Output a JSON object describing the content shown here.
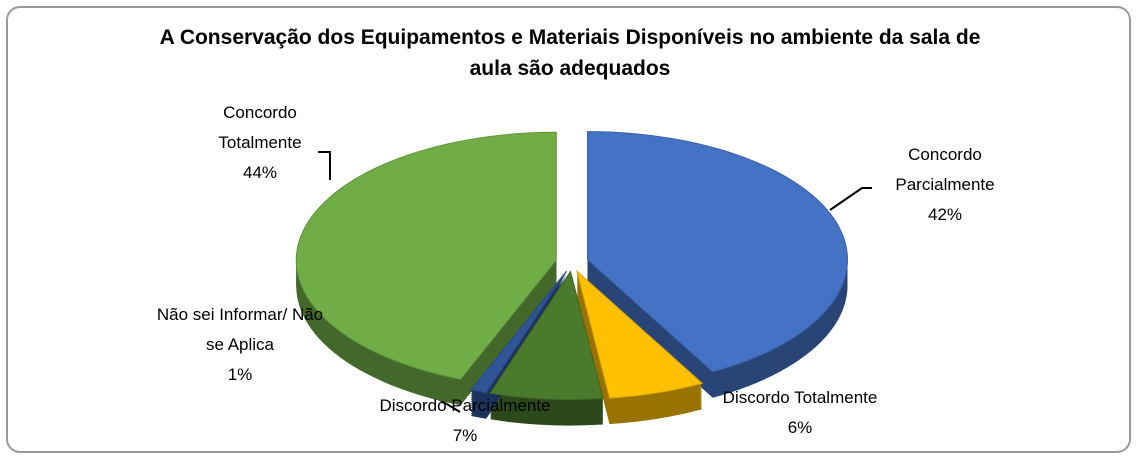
{
  "chart_data": {
    "type": "pie",
    "title": "A Conservação dos Equipamentos e Materiais Disponíveis no ambiente da sala de aula são adequados",
    "categories": [
      "Concordo Parcialmente",
      "Discordo Totalmente",
      "Discordo Parcialmente",
      "Não sei Informar/ Não se Aplica",
      "Concordo Totalmente"
    ],
    "values": [
      42,
      6,
      7,
      1,
      44
    ],
    "value_labels": [
      "42%",
      "6%",
      "7%",
      "1%",
      "44%"
    ],
    "colors": [
      "#4472c4",
      "#ffc000",
      "#4a7a2c",
      "#2f5597",
      "#70ad47"
    ]
  }
}
